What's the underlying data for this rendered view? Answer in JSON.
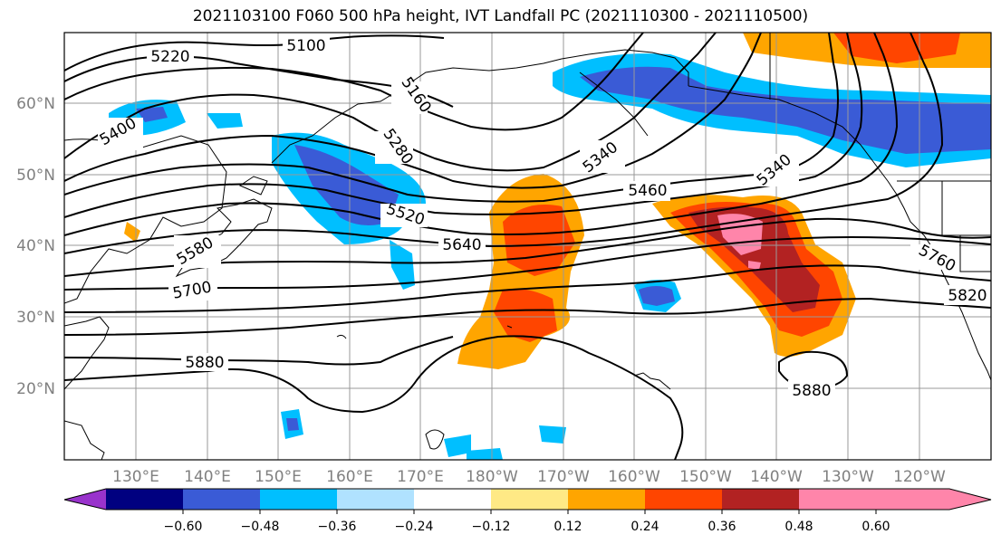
{
  "title": "2021103100 F060 500 hPa height, IVT Landfall PC (2021110300 - 2021110500)",
  "map": {
    "lat_labels": [
      "60°N",
      "50°N",
      "40°N",
      "30°N",
      "20°N"
    ],
    "lon_labels": [
      "130°E",
      "140°E",
      "150°E",
      "160°E",
      "170°E",
      "180°W",
      "170°W",
      "160°W",
      "150°W",
      "140°W",
      "130°W",
      "120°W"
    ],
    "contour_labels": [
      "5100",
      "5220",
      "5160",
      "5400",
      "5280",
      "5340",
      "5340",
      "5460",
      "5520",
      "5580",
      "5640",
      "5700",
      "5760",
      "5820",
      "5880",
      "5880"
    ]
  },
  "colorbar": {
    "colors": [
      "#9933CC",
      "#000080",
      "#3A5BD6",
      "#00BFFF",
      "#B0E2FF",
      "#FFFFFF",
      "#FFE985",
      "#FFA500",
      "#FF4500",
      "#B22222",
      "#FF85AA"
    ],
    "tick_labels": [
      "−0.60",
      "−0.48",
      "−0.36",
      "−0.24",
      "−0.12",
      "0.12",
      "0.24",
      "0.36",
      "0.48",
      "0.60"
    ]
  }
}
